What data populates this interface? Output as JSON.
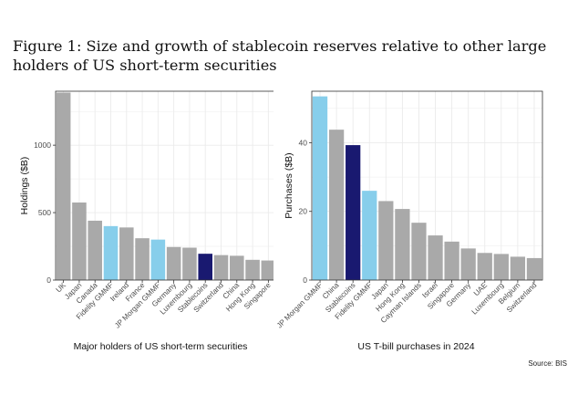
{
  "figure": {
    "title": "Figure 1: Size and growth of stablecoin reserves relative to other large holders of US short-term securities",
    "source": "Source: BIS"
  },
  "colors": {
    "grey": "#a9a9a9",
    "light_blue": "#87ceeb",
    "navy": "#191970",
    "panel_bg": "#ffffff",
    "grid": "#ebebeb",
    "axis": "#333333"
  },
  "chart_data": [
    {
      "type": "bar",
      "title": "",
      "xlabel": "Major holders of US short-term securities",
      "ylabel": "Holdings ($B)",
      "ylim": [
        0,
        1400
      ],
      "yticks": [
        0,
        500,
        1000
      ],
      "grid": true,
      "categories": [
        "UK",
        "Japan",
        "Canada",
        "Fidelity GMMF",
        "Ireland",
        "France",
        "JP Morgan GMMF",
        "Germany",
        "Luxembourg",
        "Stablecoins",
        "Switzerland",
        "China",
        "Hong Kong",
        "Singapore"
      ],
      "values": [
        1390,
        575,
        440,
        400,
        390,
        310,
        300,
        245,
        240,
        195,
        185,
        180,
        150,
        145
      ],
      "bar_colors": [
        "grey",
        "grey",
        "grey",
        "light_blue",
        "grey",
        "grey",
        "light_blue",
        "grey",
        "grey",
        "navy",
        "grey",
        "grey",
        "grey",
        "grey"
      ]
    },
    {
      "type": "bar",
      "title": "",
      "xlabel": "US T-bill purchases in 2024",
      "ylabel": "Purchases ($B)",
      "ylim": [
        0,
        55
      ],
      "yticks": [
        0,
        20,
        40
      ],
      "grid": true,
      "categories": [
        "JP Morgan GMMF",
        "China",
        "Stablecoins",
        "Fidelity GMMF",
        "Japan",
        "Hong Kong",
        "Cayman Islands",
        "Israel",
        "Singapore",
        "Germany",
        "UAE",
        "Luxembourg",
        "Belgium",
        "Switzerland"
      ],
      "values": [
        53.5,
        43.8,
        39.3,
        26,
        23,
        20.7,
        16.7,
        13,
        11.2,
        9.2,
        7.9,
        7.6,
        6.8,
        6.4
      ],
      "bar_colors": [
        "light_blue",
        "grey",
        "navy",
        "light_blue",
        "grey",
        "grey",
        "grey",
        "grey",
        "grey",
        "grey",
        "grey",
        "grey",
        "grey",
        "grey"
      ]
    }
  ]
}
